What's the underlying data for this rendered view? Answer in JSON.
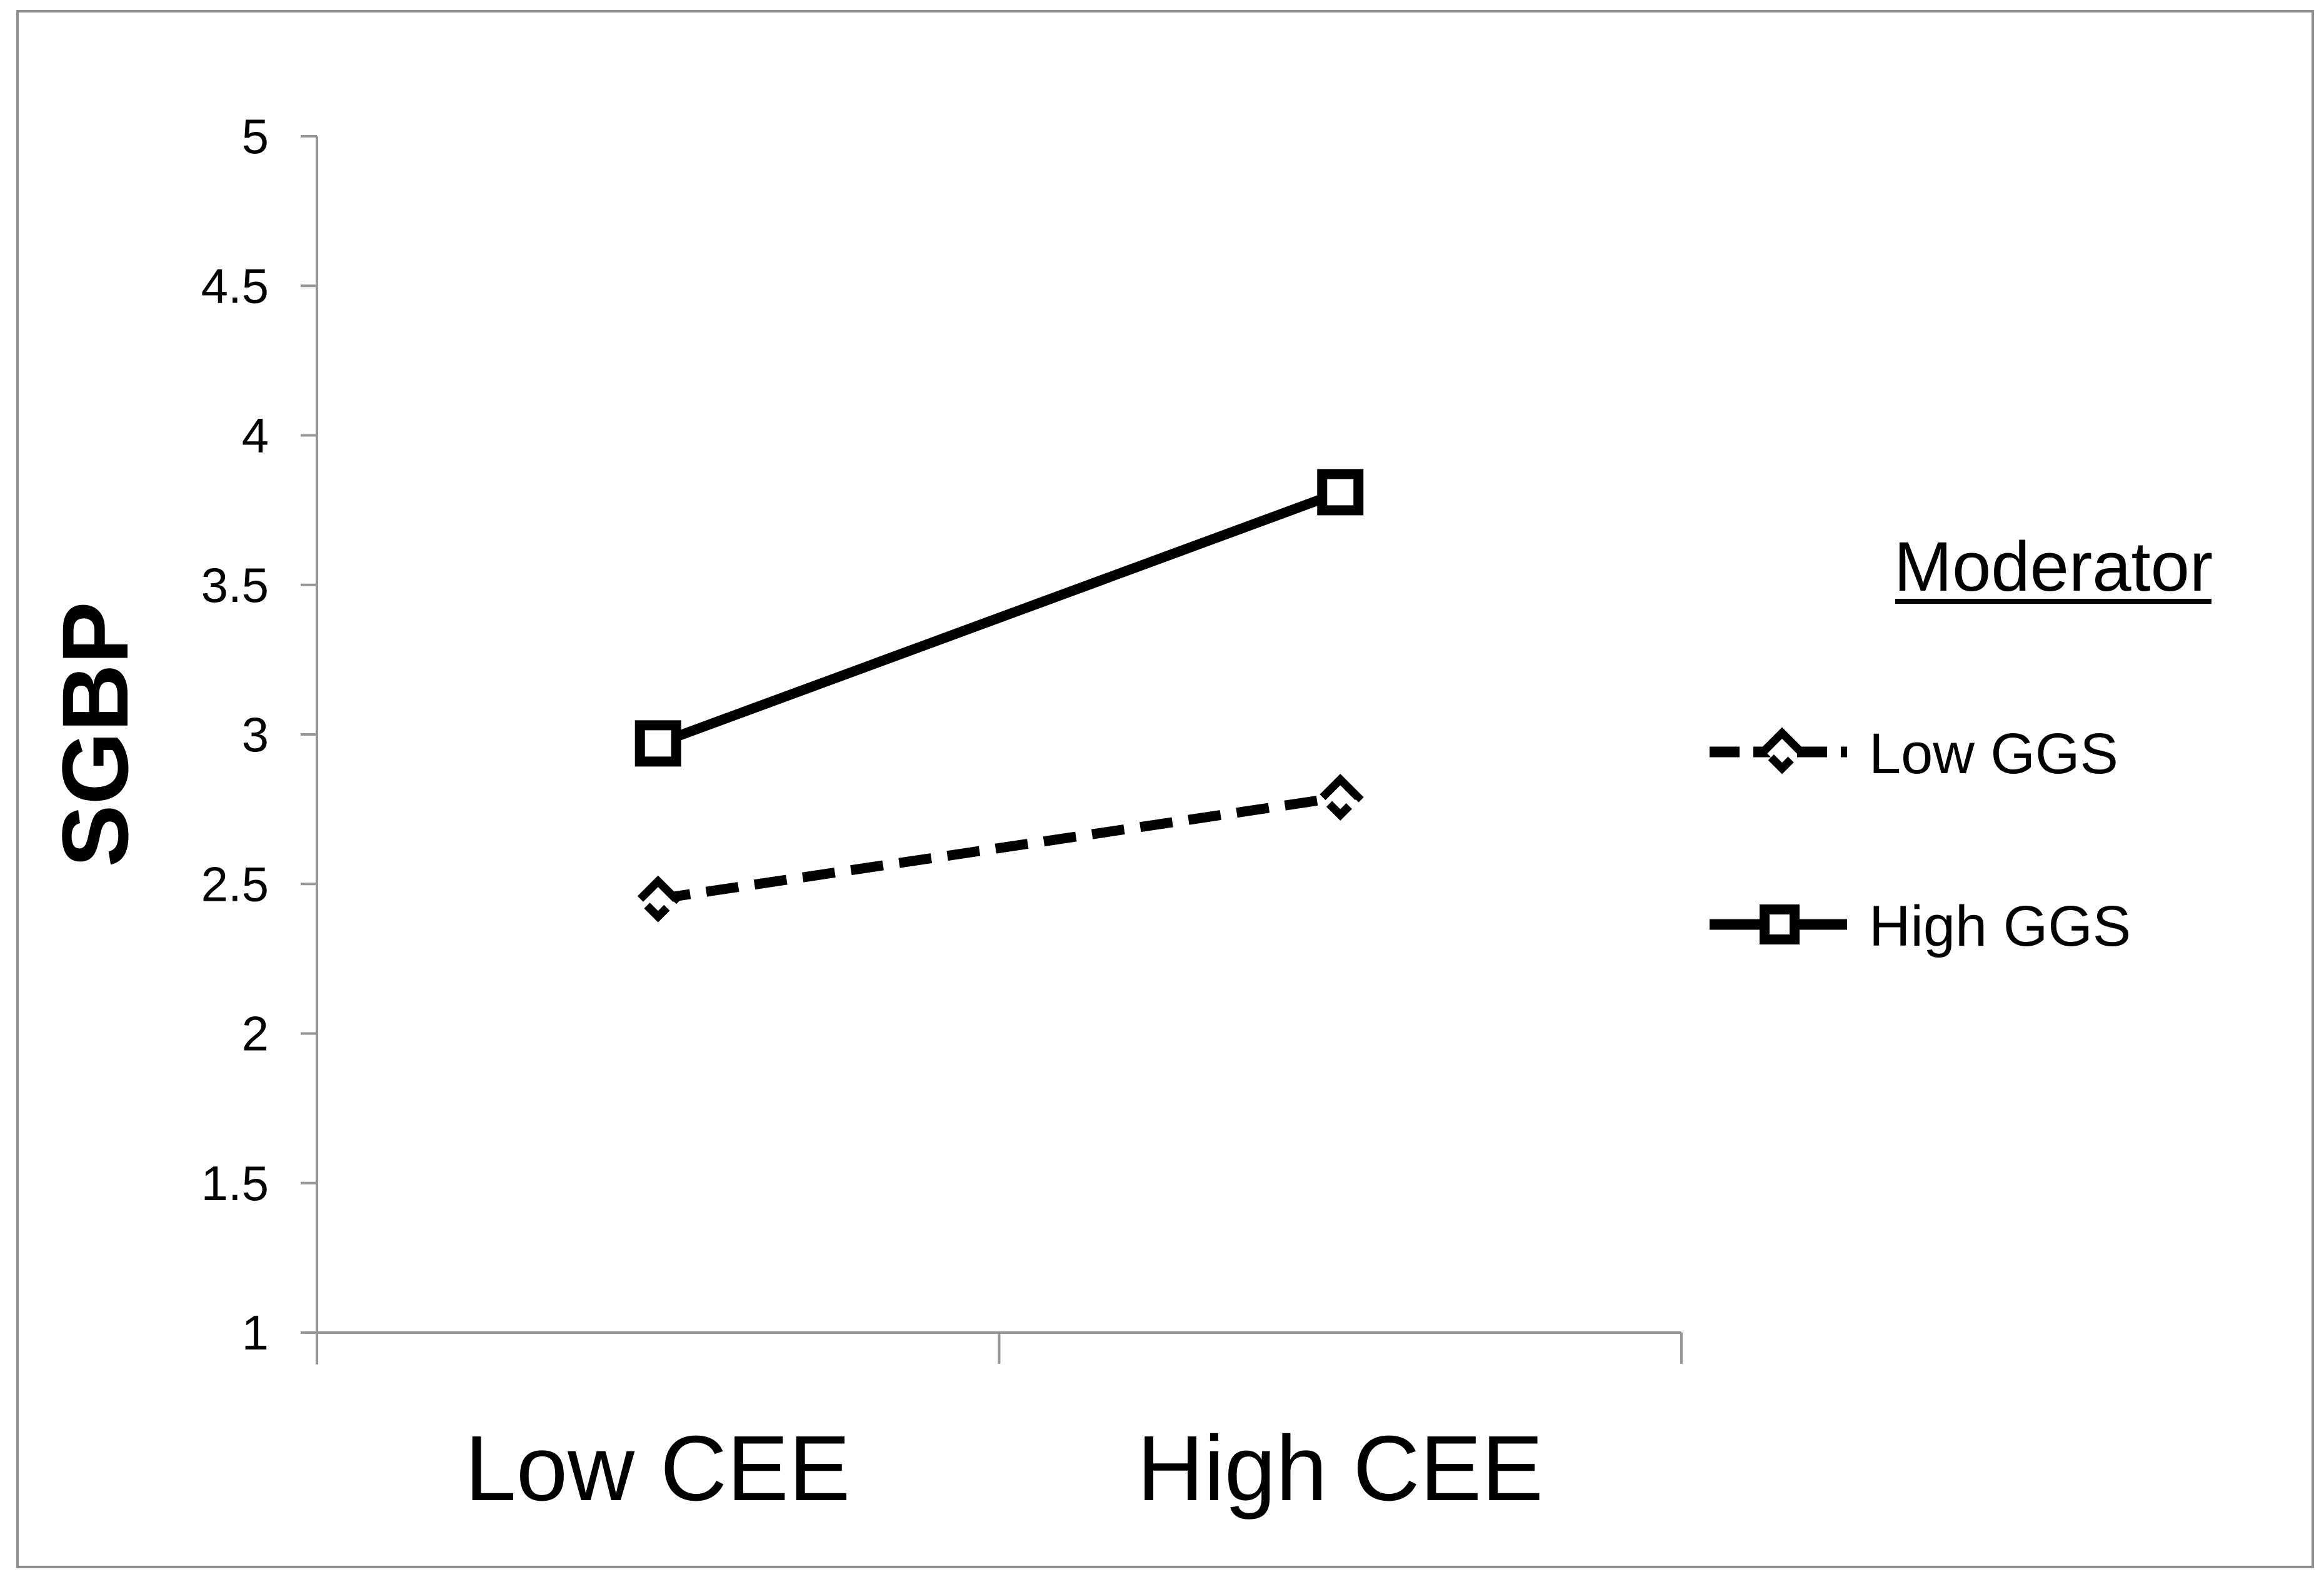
{
  "figure": {
    "background": "#ffffff",
    "border_color": "#8f8f8f"
  },
  "chart_data": {
    "type": "line",
    "title": "",
    "xlabel": "",
    "ylabel": "SGBP",
    "categories": [
      "Low CEE",
      "High CEE"
    ],
    "series": [
      {
        "name": "Low GGS",
        "values": [
          2.45,
          2.79
        ],
        "line_style": "dashed",
        "marker": "diamond",
        "color": "#000000"
      },
      {
        "name": "High GGS",
        "values": [
          2.97,
          3.81
        ],
        "line_style": "solid",
        "marker": "square",
        "color": "#000000"
      }
    ],
    "ylim": [
      1,
      5
    ],
    "yticks": [
      1,
      1.5,
      2,
      2.5,
      3,
      3.5,
      4,
      4.5,
      5
    ],
    "grid": false,
    "legend": {
      "title": "Moderator",
      "entries": [
        "Low GGS",
        "High GGS"
      ],
      "position": "right"
    }
  },
  "colors": {
    "series": "#000000",
    "axis": "#969696",
    "text": "#000000"
  }
}
